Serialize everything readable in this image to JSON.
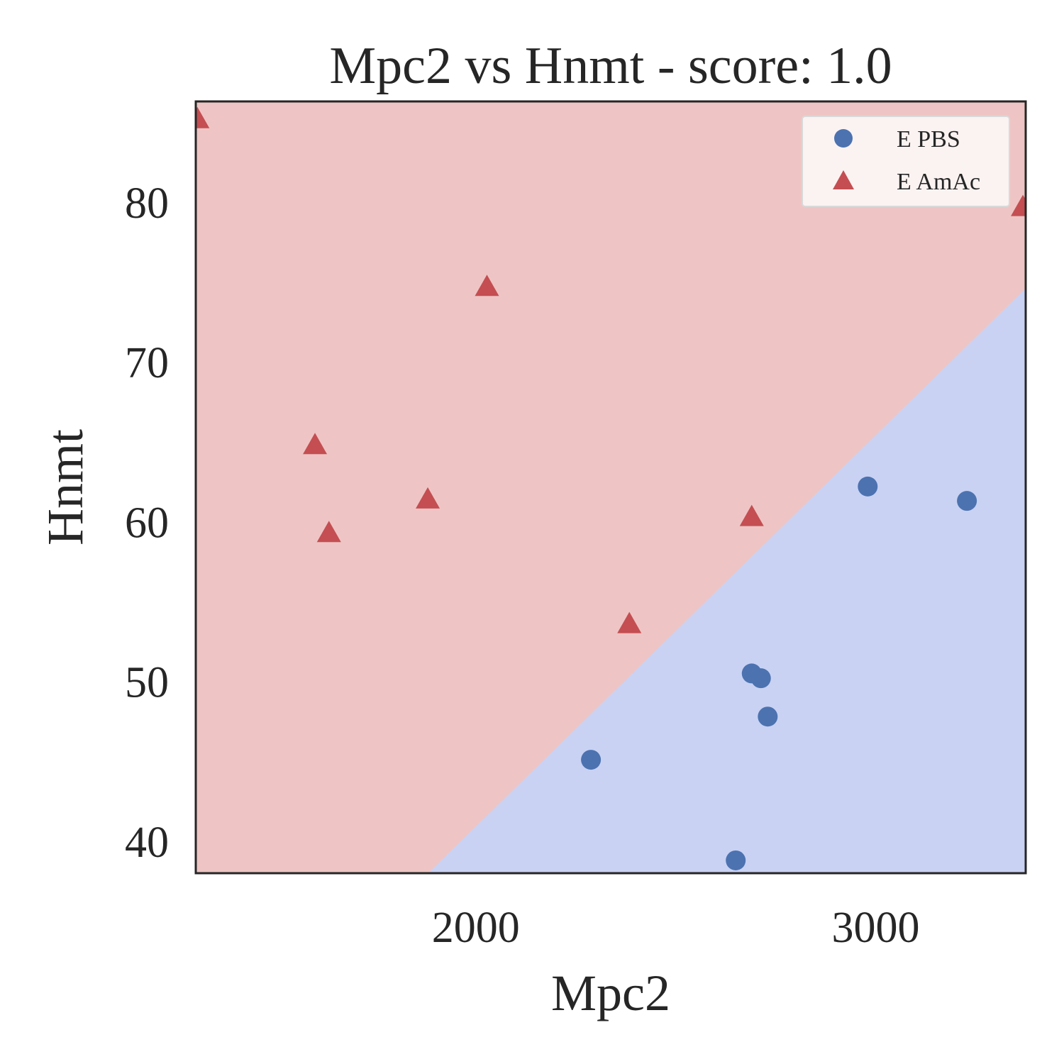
{
  "chart_data": {
    "type": "scatter",
    "title": "Mpc2 vs Hnmt - score: 1.0",
    "xlabel": "Mpc2",
    "ylabel": "Hnmt",
    "xlim": [
      1300,
      3375
    ],
    "ylim": [
      38,
      86.3
    ],
    "xticks": [
      2000,
      3000
    ],
    "yticks": [
      40,
      50,
      60,
      70,
      80
    ],
    "grid": false,
    "legend_position": "top-right",
    "decision_boundary": {
      "points": [
        [
          1881,
          38
        ],
        [
          3375,
          74.6
        ]
      ],
      "upper_region_class": "E AmAc",
      "lower_region_class": "E PBS",
      "upper_region_color": "#eec5c4",
      "lower_region_color": "#c9d2f3"
    },
    "series": [
      {
        "name": "E PBS",
        "marker": "circle",
        "color": "#4c72b0",
        "points": [
          [
            2288,
            45.1
          ],
          [
            2650,
            38.8
          ],
          [
            2690,
            50.5
          ],
          [
            2713,
            50.2
          ],
          [
            2730,
            47.8
          ],
          [
            2980,
            62.2
          ],
          [
            3228,
            61.3
          ]
        ]
      },
      {
        "name": "E AmAc",
        "marker": "triangle",
        "color": "#c44e52",
        "points": [
          [
            1304,
            85.2
          ],
          [
            1598,
            64.8
          ],
          [
            1633,
            59.3
          ],
          [
            1880,
            61.4
          ],
          [
            2028,
            74.7
          ],
          [
            2384,
            53.6
          ],
          [
            2690,
            60.3
          ],
          [
            3368,
            79.7
          ]
        ]
      }
    ]
  }
}
